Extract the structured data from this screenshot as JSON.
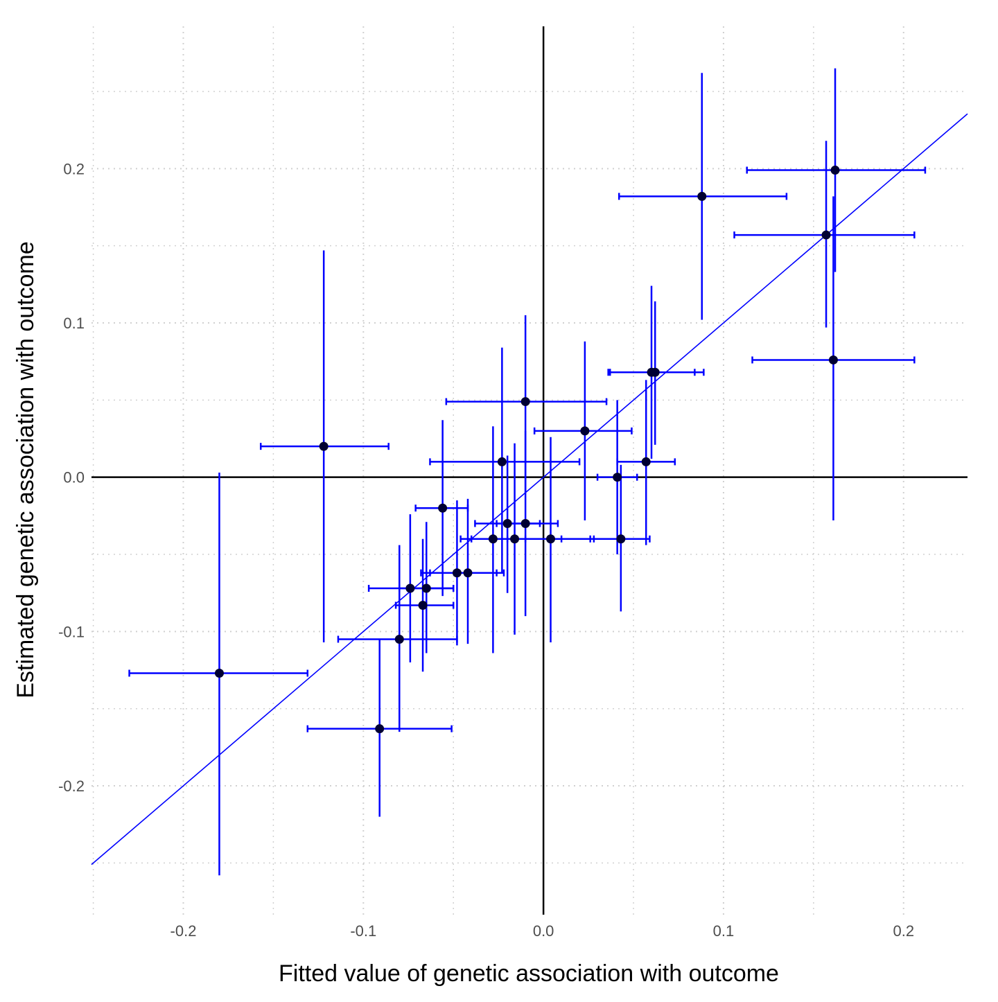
{
  "chart_data": {
    "type": "scatter",
    "xlabel": "Fitted value of genetic association with outcome",
    "ylabel": "Estimated genetic association with outcome",
    "xlim": [
      -0.251,
      0.2355
    ],
    "ylim": [
      -0.2835,
      0.2922
    ],
    "x_ticks": [
      -0.2,
      -0.1,
      0.0,
      0.1,
      0.2
    ],
    "x_tick_labels": [
      "-0.2",
      "-0.1",
      "0.0",
      "0.1",
      "0.2"
    ],
    "y_ticks": [
      -0.2,
      -0.1,
      0.0,
      0.1,
      0.2
    ],
    "y_tick_labels": [
      "-0.2",
      "-0.1",
      "0.0",
      "0.1",
      "0.2"
    ],
    "grid": "dotted, major and minor",
    "reference_lines": {
      "x": 0,
      "y": 0
    },
    "fit_line": {
      "intercept": 0,
      "slope": 1
    },
    "colors": {
      "errorbar": "#0000ff",
      "fit_line": "#0000ff",
      "point": "#000033",
      "reference": "#000000",
      "grid": "#d0d0d0"
    },
    "points": [
      {
        "x": -0.18,
        "y": -0.127,
        "xlo": -0.23,
        "xhi": -0.131,
        "ylo": -0.258,
        "yhi": 0.003
      },
      {
        "x": -0.122,
        "y": 0.02,
        "xlo": -0.157,
        "xhi": -0.086,
        "ylo": -0.107,
        "yhi": 0.147
      },
      {
        "x": -0.091,
        "y": -0.163,
        "xlo": -0.131,
        "xhi": -0.051,
        "ylo": -0.22,
        "yhi": -0.105
      },
      {
        "x": -0.08,
        "y": -0.105,
        "xlo": -0.114,
        "xhi": -0.048,
        "ylo": -0.165,
        "yhi": -0.044
      },
      {
        "x": -0.074,
        "y": -0.072,
        "xlo": -0.097,
        "xhi": -0.05,
        "ylo": -0.12,
        "yhi": -0.024
      },
      {
        "x": -0.067,
        "y": -0.083,
        "xlo": -0.082,
        "xhi": -0.05,
        "ylo": -0.126,
        "yhi": -0.04
      },
      {
        "x": -0.065,
        "y": -0.072,
        "xlo": -0.08,
        "xhi": -0.05,
        "ylo": -0.114,
        "yhi": -0.029
      },
      {
        "x": -0.056,
        "y": -0.02,
        "xlo": -0.071,
        "xhi": -0.042,
        "ylo": -0.077,
        "yhi": 0.037
      },
      {
        "x": -0.048,
        "y": -0.062,
        "xlo": -0.068,
        "xhi": -0.026,
        "ylo": -0.109,
        "yhi": -0.015
      },
      {
        "x": -0.042,
        "y": -0.062,
        "xlo": -0.063,
        "xhi": -0.022,
        "ylo": -0.108,
        "yhi": -0.014
      },
      {
        "x": -0.028,
        "y": -0.04,
        "xlo": -0.046,
        "xhi": -0.01,
        "ylo": -0.114,
        "yhi": 0.033
      },
      {
        "x": -0.023,
        "y": 0.01,
        "xlo": -0.063,
        "xhi": 0.02,
        "ylo": -0.062,
        "yhi": 0.084
      },
      {
        "x": -0.02,
        "y": -0.03,
        "xlo": -0.038,
        "xhi": -0.002,
        "ylo": -0.075,
        "yhi": 0.014
      },
      {
        "x": -0.016,
        "y": -0.04,
        "xlo": -0.04,
        "xhi": 0.01,
        "ylo": -0.102,
        "yhi": 0.022
      },
      {
        "x": -0.01,
        "y": 0.049,
        "xlo": -0.054,
        "xhi": 0.035,
        "ylo": -0.01,
        "yhi": 0.105
      },
      {
        "x": -0.01,
        "y": -0.03,
        "xlo": -0.026,
        "xhi": 0.008,
        "ylo": -0.09,
        "yhi": 0.03
      },
      {
        "x": 0.004,
        "y": -0.04,
        "xlo": -0.02,
        "xhi": 0.028,
        "ylo": -0.107,
        "yhi": 0.026
      },
      {
        "x": 0.023,
        "y": 0.03,
        "xlo": -0.005,
        "xhi": 0.049,
        "ylo": -0.028,
        "yhi": 0.088
      },
      {
        "x": 0.041,
        "y": 0.0,
        "xlo": 0.03,
        "xhi": 0.052,
        "ylo": -0.05,
        "yhi": 0.05
      },
      {
        "x": 0.043,
        "y": -0.04,
        "xlo": 0.026,
        "xhi": 0.059,
        "ylo": -0.087,
        "yhi": 0.008
      },
      {
        "x": 0.057,
        "y": 0.01,
        "xlo": 0.041,
        "xhi": 0.073,
        "ylo": -0.044,
        "yhi": 0.063
      },
      {
        "x": 0.06,
        "y": 0.068,
        "xlo": 0.037,
        "xhi": 0.084,
        "ylo": 0.012,
        "yhi": 0.124
      },
      {
        "x": 0.062,
        "y": 0.068,
        "xlo": 0.036,
        "xhi": 0.089,
        "ylo": 0.021,
        "yhi": 0.114
      },
      {
        "x": 0.088,
        "y": 0.182,
        "xlo": 0.042,
        "xhi": 0.135,
        "ylo": 0.102,
        "yhi": 0.262
      },
      {
        "x": 0.157,
        "y": 0.157,
        "xlo": 0.106,
        "xhi": 0.206,
        "ylo": 0.097,
        "yhi": 0.218
      },
      {
        "x": 0.162,
        "y": 0.199,
        "xlo": 0.113,
        "xhi": 0.212,
        "ylo": 0.133,
        "yhi": 0.265
      },
      {
        "x": 0.161,
        "y": 0.076,
        "xlo": 0.116,
        "xhi": 0.206,
        "ylo": -0.028,
        "yhi": 0.182
      }
    ]
  }
}
